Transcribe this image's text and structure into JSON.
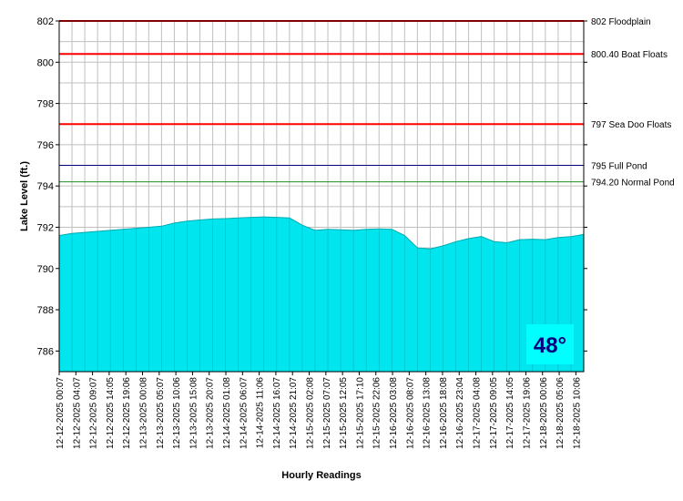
{
  "chart_data": {
    "type": "area",
    "xlabel": "Hourly Readings",
    "ylabel": "Lake Level (ft.)",
    "ylim": [
      785,
      802
    ],
    "yticks": [
      786,
      788,
      790,
      792,
      794,
      796,
      798,
      800,
      802
    ],
    "grid": true,
    "legend": "none",
    "x_tick_labels": [
      "12-12-2025 00:07",
      "12-12-2025 04:07",
      "12-12-2025 09:07",
      "12-12-2025 14:05",
      "12-12-2025 19:06",
      "12-13-2025 00:08",
      "12-13-2025 05:07",
      "12-13-2025 10:06",
      "12-13-2025 15:08",
      "12-13-2025 20:07",
      "12-14-2025 01:08",
      "12-14-2025 06:07",
      "12-14-2025 11:06",
      "12-14-2025 16:07",
      "12-14-2025 21:07",
      "12-15-2025 02:08",
      "12-15-2025 07:07",
      "12-15-2025 12:05",
      "12-15-2025 17:10",
      "12-15-2025 22:06",
      "12-16-2025 03:08",
      "12-16-2025 08:07",
      "12-16-2025 13:08",
      "12-16-2025 18:08",
      "12-16-2025 23:04",
      "12-17-2025 04:08",
      "12-17-2025 09:05",
      "12-17-2025 14:05",
      "12-17-2025 19:06",
      "12-18-2025 00:06",
      "12-18-2025 05:06",
      "12-18-2025 10:06"
    ],
    "series": [
      {
        "color": "#00e5ee",
        "values": [
          791.6,
          791.7,
          791.75,
          791.8,
          791.85,
          791.9,
          791.95,
          792.0,
          792.05,
          792.2,
          792.3,
          792.35,
          792.4,
          792.42,
          792.45,
          792.48,
          792.5,
          792.48,
          792.45,
          792.1,
          791.85,
          791.9,
          791.88,
          791.85,
          791.9,
          791.92,
          791.9,
          791.6,
          791.0,
          790.95,
          791.1,
          791.3,
          791.45,
          791.55,
          791.3,
          791.25,
          791.4,
          791.42,
          791.4,
          791.5,
          791.55,
          791.65
        ]
      }
    ],
    "reference_lines": [
      {
        "value": 802,
        "label": "802 Floodplain",
        "color": "#ff0000"
      },
      {
        "value": 800.4,
        "label": "800.40 Boat Floats",
        "color": "#ff0000"
      },
      {
        "value": 797,
        "label": "797 Sea Doo Floats",
        "color": "#ff0000"
      },
      {
        "value": 795,
        "label": "795 Full Pond",
        "color": "#000080"
      },
      {
        "value": 794.2,
        "label": "794.20 Normal Pond",
        "color": "#228b22"
      }
    ],
    "badge": {
      "text": "48°",
      "background": "#00ffff",
      "color": "#000080"
    }
  }
}
